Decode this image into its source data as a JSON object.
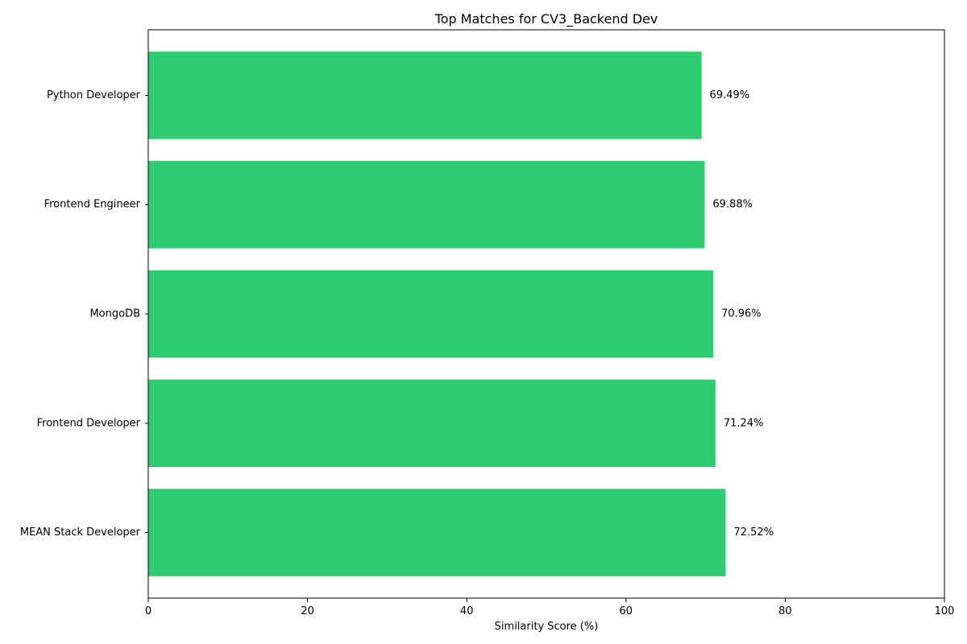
{
  "chart_data": {
    "type": "bar",
    "orientation": "horizontal",
    "title": "Top Matches for CV3_Backend Dev",
    "xlabel": "Similarity Score (%)",
    "ylabel": "",
    "xlim": [
      0,
      100
    ],
    "xticks": [
      0,
      20,
      40,
      60,
      80,
      100
    ],
    "categories": [
      "MEAN Stack Developer",
      "Frontend Developer",
      "MongoDB",
      "Frontend Engineer",
      "Python Developer"
    ],
    "values": [
      72.52,
      71.24,
      70.96,
      69.88,
      69.49
    ],
    "value_labels": [
      "72.52%",
      "71.24%",
      "70.96%",
      "69.88%",
      "69.49%"
    ],
    "bar_color": "#2ecc71",
    "grid": false,
    "legend": "none"
  }
}
